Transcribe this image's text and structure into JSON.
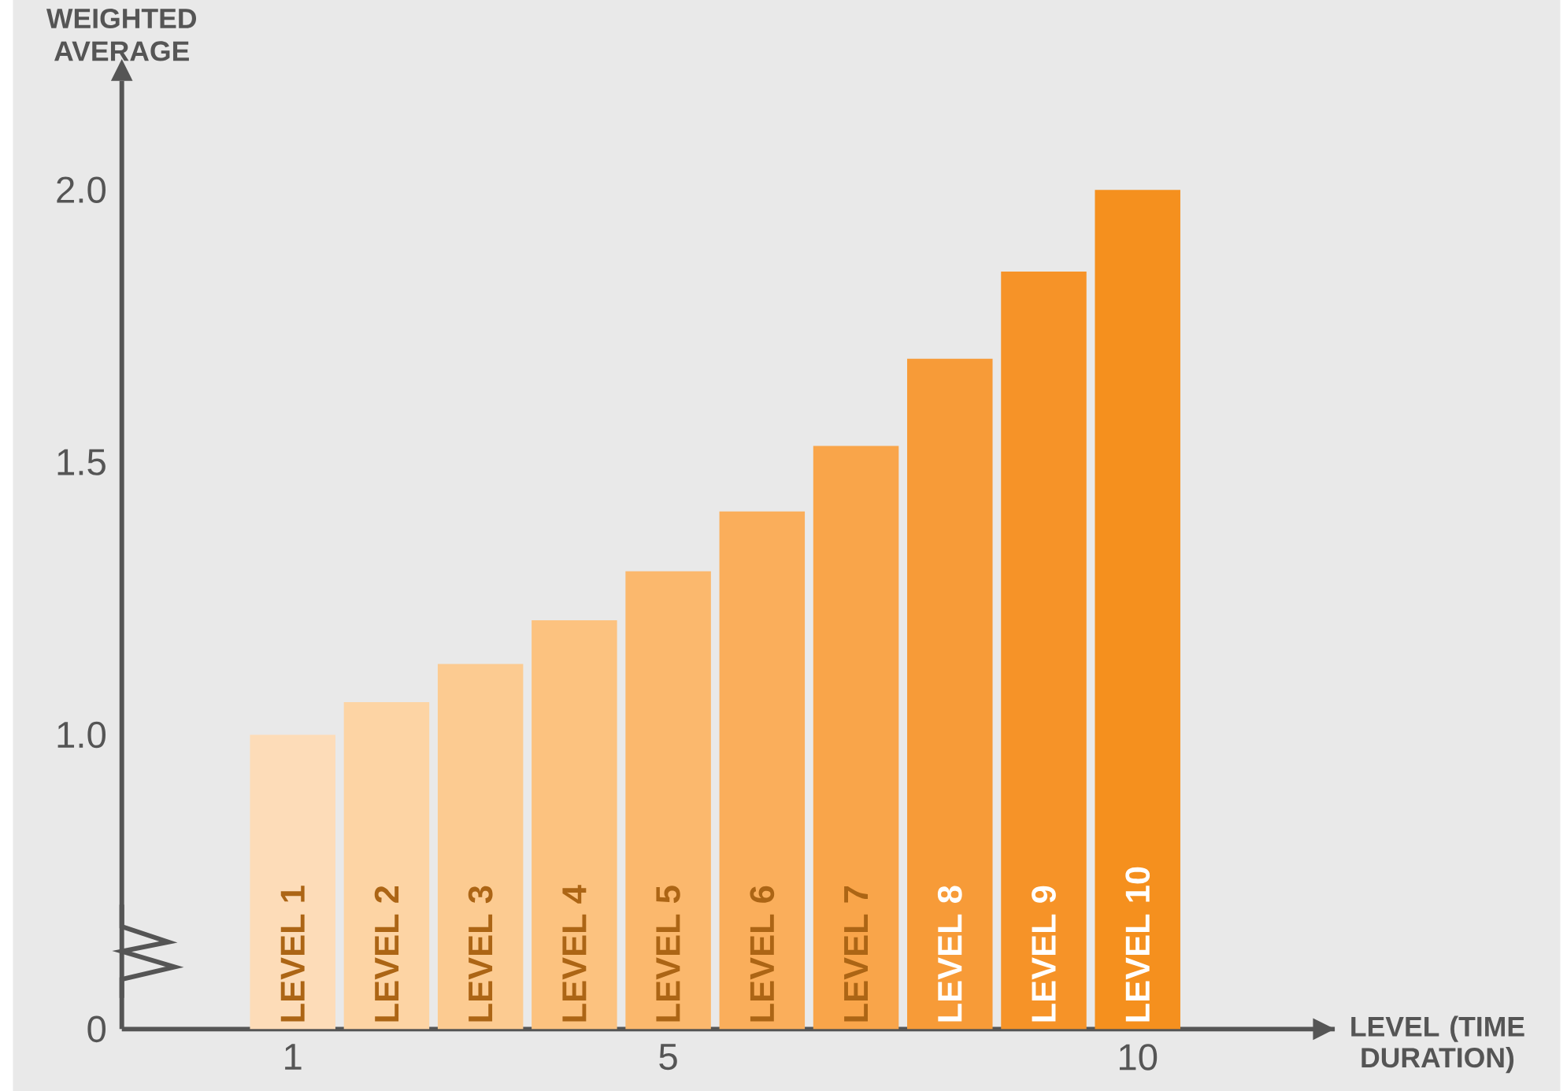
{
  "chart_data": {
    "type": "bar",
    "xlabel": "LEVEL (TIME DURATION)",
    "ylabel": "WEIGHTED AVERAGE",
    "x": [
      1,
      2,
      3,
      4,
      5,
      6,
      7,
      8,
      9,
      10
    ],
    "values": [
      1.0,
      1.06,
      1.13,
      1.21,
      1.3,
      1.41,
      1.53,
      1.69,
      1.85,
      2.0
    ],
    "colors": [
      "#fddcb8",
      "#fdd4a4",
      "#fccb91",
      "#fcc27f",
      "#fbb86d",
      "#faae5b",
      "#f9a54a",
      "#f79b38",
      "#f69328",
      "#f5901e"
    ],
    "xlim": [
      -0.82,
      12.1
    ],
    "xticks": [
      1,
      5,
      10
    ],
    "ylim": [
      0.46,
      2.2
    ],
    "yticks": [
      {
        "value": 0.46,
        "label": "0"
      },
      {
        "value": 1.0,
        "label": "1.0"
      },
      {
        "value": 1.5,
        "label": "1.5"
      },
      {
        "value": 2.0,
        "label": "2.0"
      }
    ],
    "grid": false,
    "annotations": [
      {
        "text": "LEVEL 1",
        "x": 1,
        "y": 0.46
      },
      {
        "text": "LEVEL 2",
        "x": 2,
        "y": 0.46
      },
      {
        "text": "LEVEL 3",
        "x": 3,
        "y": 0.46
      },
      {
        "text": "LEVEL 4",
        "x": 4,
        "y": 0.46
      },
      {
        "text": "LEVEL 5",
        "x": 5,
        "y": 0.46
      },
      {
        "text": "LEVEL 6",
        "x": 6,
        "y": 0.46
      },
      {
        "text": "LEVEL 7",
        "x": 7,
        "y": 0.46
      },
      {
        "text": "LEVEL 8",
        "x": 8,
        "y": 0.46
      },
      {
        "text": "LEVEL 9",
        "x": 9,
        "y": 0.46
      },
      {
        "text": "LEVEL 10",
        "x": 10,
        "y": 0.46
      }
    ]
  }
}
